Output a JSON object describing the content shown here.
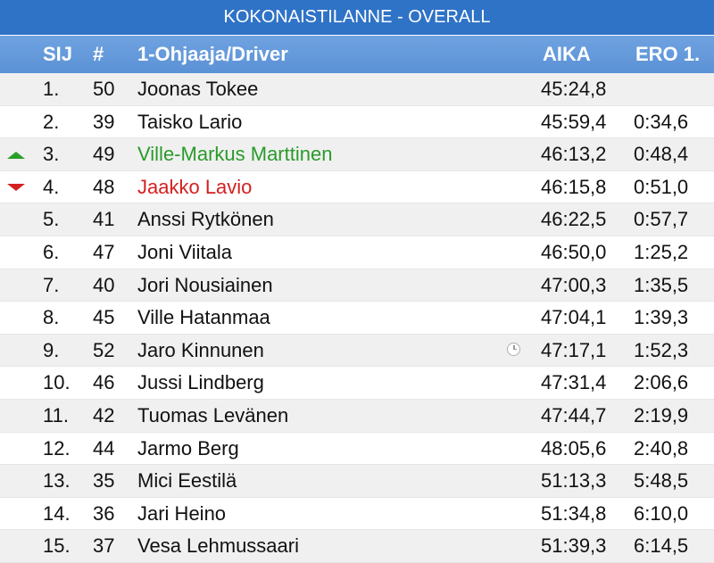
{
  "title": "KOKONAISTILANNE - OVERALL",
  "columns": {
    "position": "SIJ",
    "number": "#",
    "driver": "1-Ohjaaja/Driver",
    "time": "AIKA",
    "diff": "ERO 1."
  },
  "colors": {
    "title_bar": "#2f73c7",
    "header_bar": "#6fa2e0",
    "gained_position": "#2a9a2a",
    "lost_position": "#d42020"
  },
  "rows": [
    {
      "pos": "1.",
      "num": "50",
      "name": "Joonas Tokee",
      "time": "45:24,8",
      "diff": "",
      "change": "none",
      "clock": false
    },
    {
      "pos": "2.",
      "num": "39",
      "name": "Taisko Lario",
      "time": "45:59,4",
      "diff": "0:34,6",
      "change": "none",
      "clock": false
    },
    {
      "pos": "3.",
      "num": "49",
      "name": "Ville-Markus Marttinen",
      "time": "46:13,2",
      "diff": "0:48,4",
      "change": "up",
      "clock": false
    },
    {
      "pos": "4.",
      "num": "48",
      "name": "Jaakko Lavio",
      "time": "46:15,8",
      "diff": "0:51,0",
      "change": "down",
      "clock": false
    },
    {
      "pos": "5.",
      "num": "41",
      "name": "Anssi Rytkönen",
      "time": "46:22,5",
      "diff": "0:57,7",
      "change": "none",
      "clock": false
    },
    {
      "pos": "6.",
      "num": "47",
      "name": "Joni Viitala",
      "time": "46:50,0",
      "diff": "1:25,2",
      "change": "none",
      "clock": false
    },
    {
      "pos": "7.",
      "num": "40",
      "name": "Jori Nousiainen",
      "time": "47:00,3",
      "diff": "1:35,5",
      "change": "none",
      "clock": false
    },
    {
      "pos": "8.",
      "num": "45",
      "name": "Ville Hatanmaa",
      "time": "47:04,1",
      "diff": "1:39,3",
      "change": "none",
      "clock": false
    },
    {
      "pos": "9.",
      "num": "52",
      "name": "Jaro Kinnunen",
      "time": "47:17,1",
      "diff": "1:52,3",
      "change": "none",
      "clock": true
    },
    {
      "pos": "10.",
      "num": "46",
      "name": "Jussi Lindberg",
      "time": "47:31,4",
      "diff": "2:06,6",
      "change": "none",
      "clock": false
    },
    {
      "pos": "11.",
      "num": "42",
      "name": "Tuomas Levänen",
      "time": "47:44,7",
      "diff": "2:19,9",
      "change": "none",
      "clock": false
    },
    {
      "pos": "12.",
      "num": "44",
      "name": "Jarmo Berg",
      "time": "48:05,6",
      "diff": "2:40,8",
      "change": "none",
      "clock": false
    },
    {
      "pos": "13.",
      "num": "35",
      "name": "Mici Eestilä",
      "time": "51:13,3",
      "diff": "5:48,5",
      "change": "none",
      "clock": false
    },
    {
      "pos": "14.",
      "num": "36",
      "name": "Jari Heino",
      "time": "51:34,8",
      "diff": "6:10,0",
      "change": "none",
      "clock": false
    },
    {
      "pos": "15.",
      "num": "37",
      "name": "Vesa Lehmussaari",
      "time": "51:39,3",
      "diff": "6:14,5",
      "change": "none",
      "clock": false
    }
  ]
}
